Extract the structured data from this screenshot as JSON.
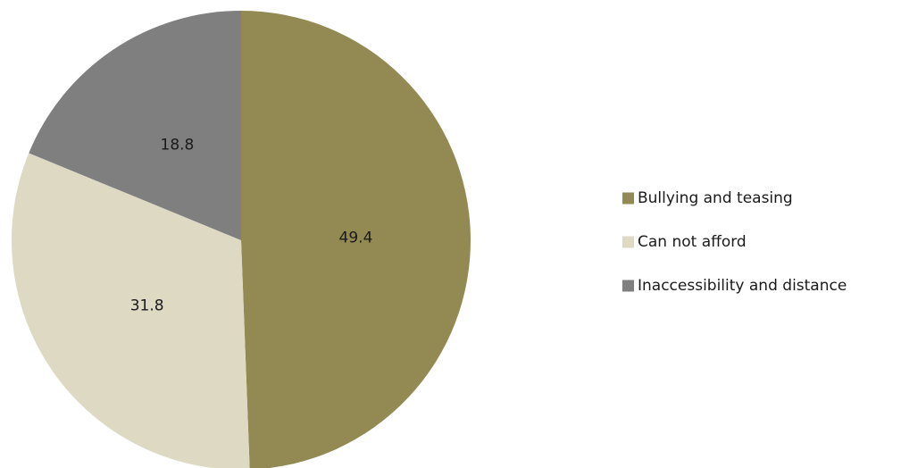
{
  "chart_data": {
    "type": "pie",
    "title": "",
    "legend_position": "right",
    "slices": [
      {
        "label": "Bullying and teasing",
        "value": 49.4,
        "color": "#938953"
      },
      {
        "label": "Can not afford",
        "value": 31.8,
        "color": "#ddd9c3"
      },
      {
        "label": "Inaccessibility and distance",
        "value": 18.8,
        "color": "#7f7f7f"
      }
    ]
  }
}
